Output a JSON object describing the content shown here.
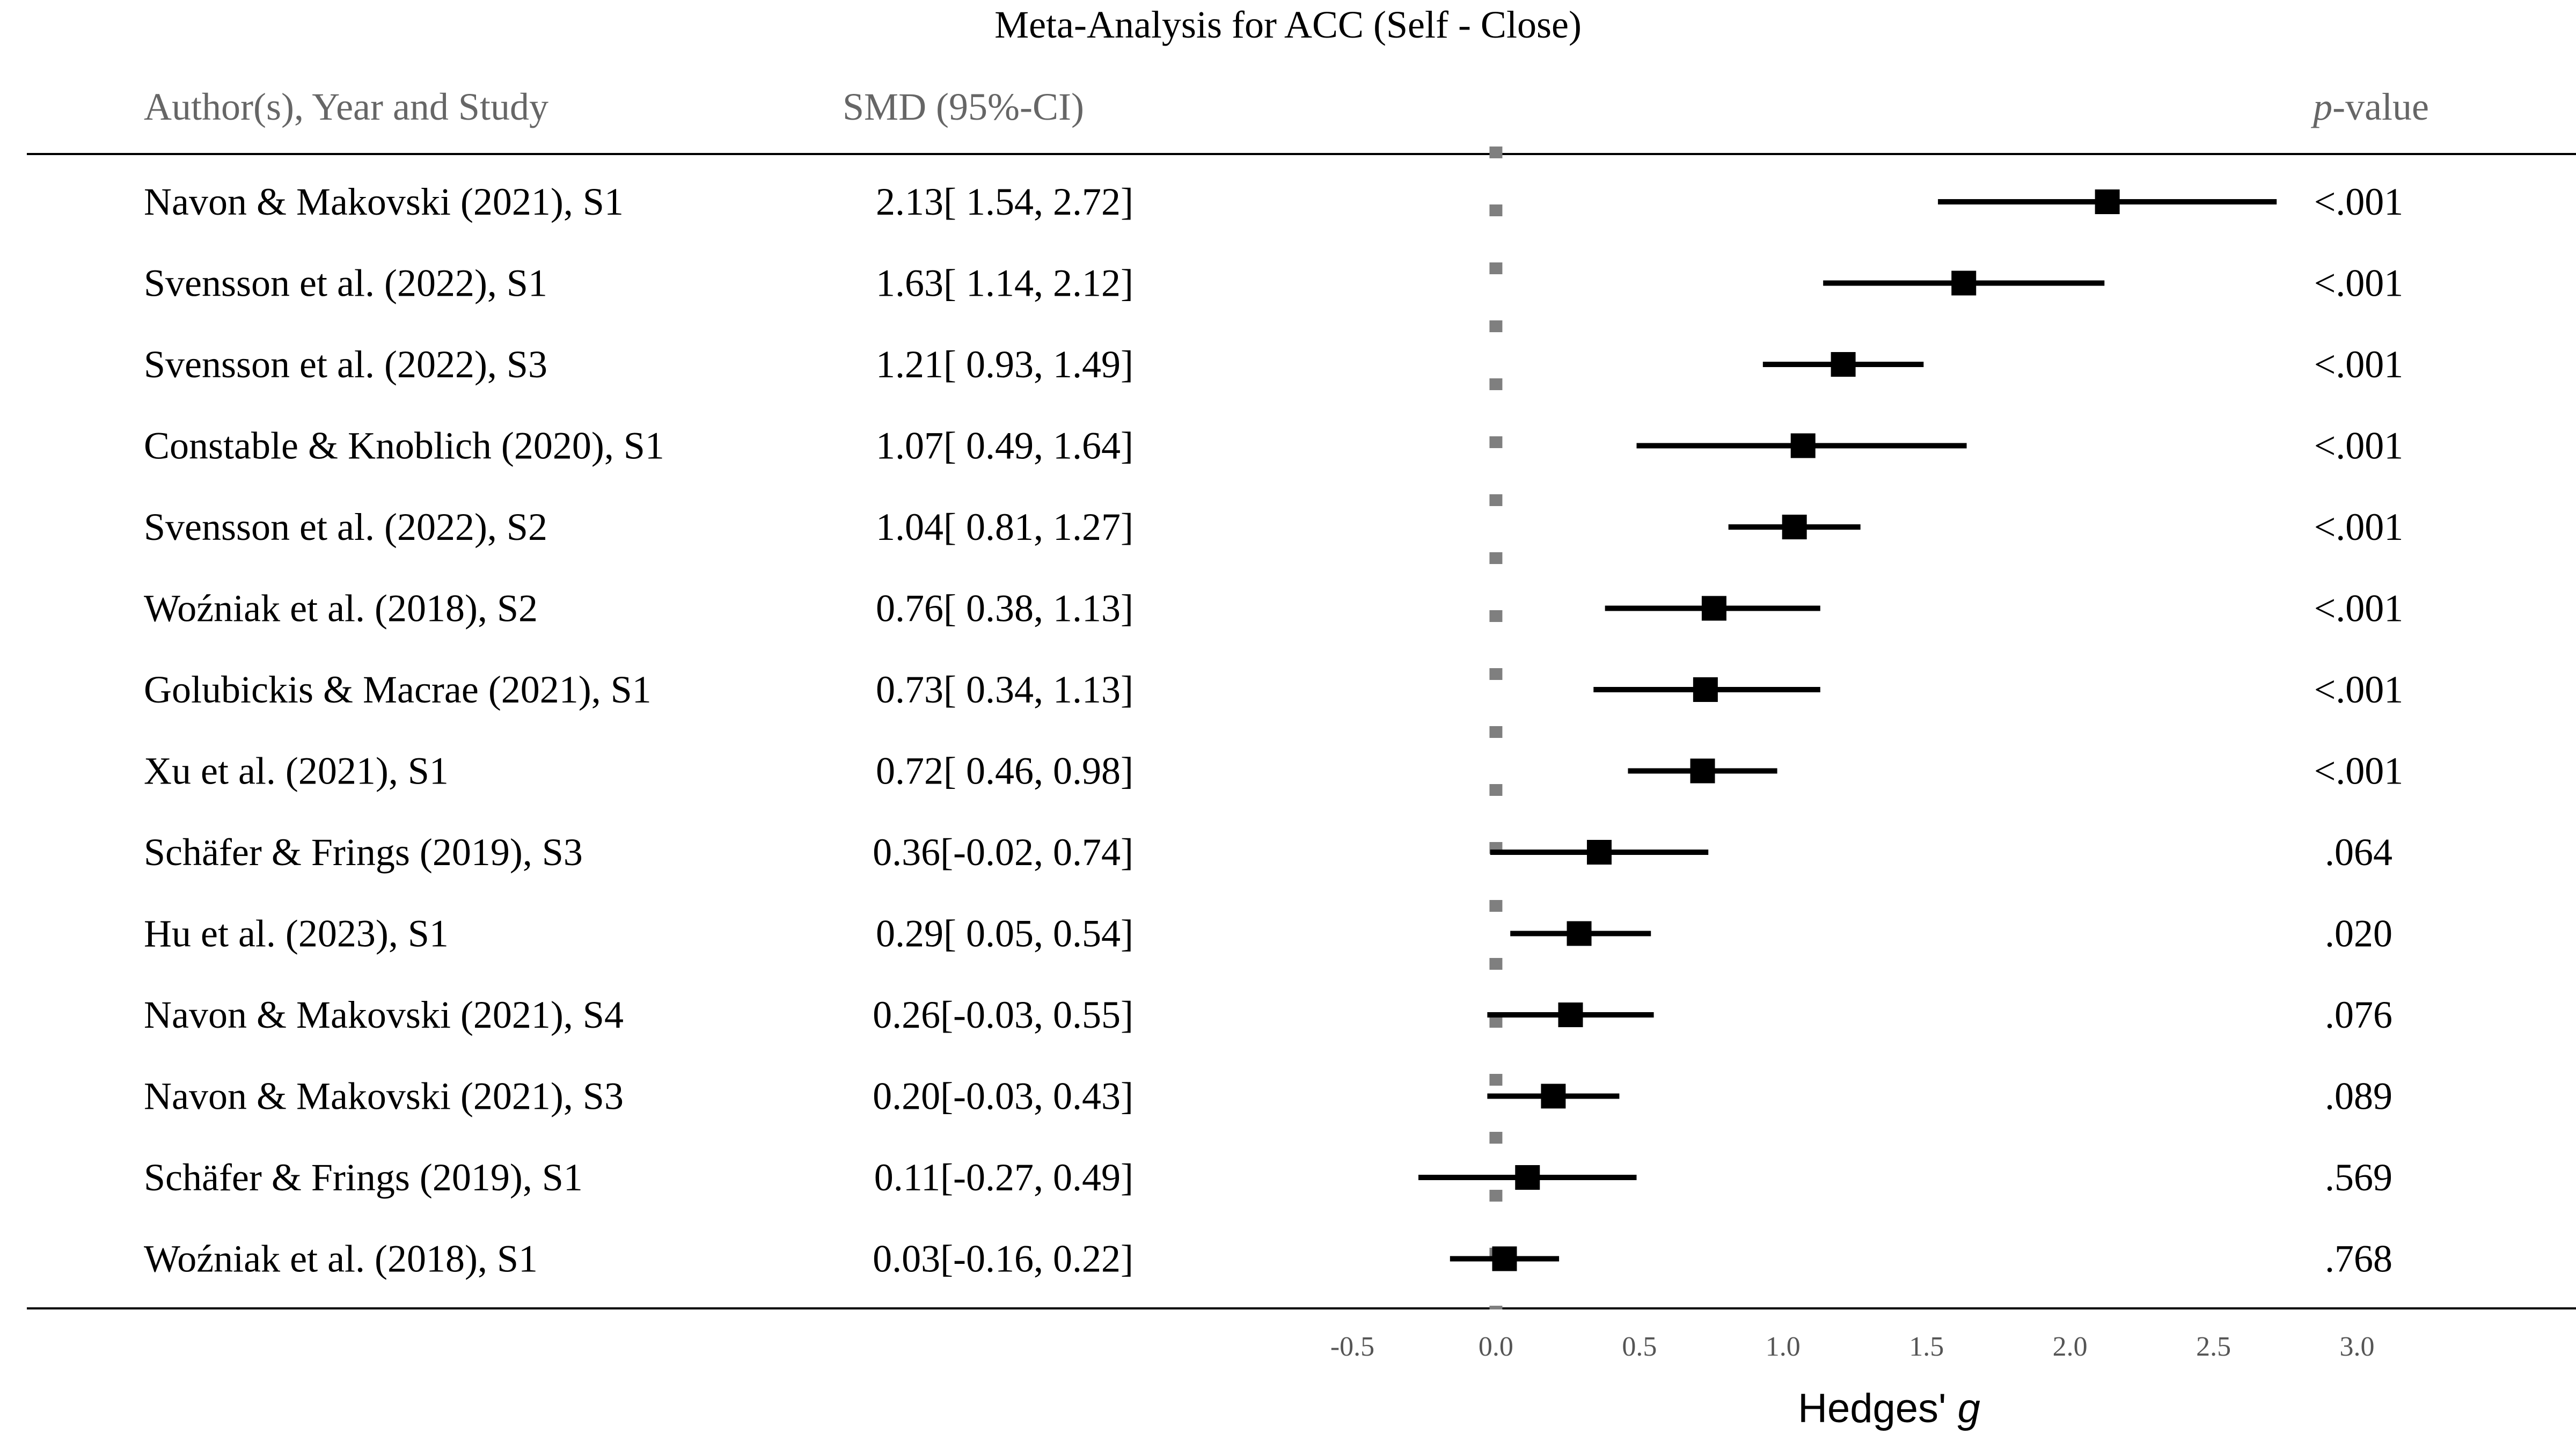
{
  "chart_data": {
    "type": "forest",
    "title": "Meta-Analysis for ACC (Self - Close)",
    "columns": {
      "study": "Author(s), Year and Study",
      "smd": "SMD (95%-CI)",
      "p_prefix": "p",
      "p_suffix": "-value"
    },
    "xlabel_text": "Hedges' ",
    "xlabel_italic": "g",
    "xlim": [
      -0.5,
      3.0
    ],
    "x_ticks": [
      -0.5,
      0.0,
      0.5,
      1.0,
      1.5,
      2.0,
      2.5,
      3.0
    ],
    "x_tick_labels": [
      "-0.5",
      "0.0",
      "0.5",
      "1.0",
      "1.5",
      "2.0",
      "2.5",
      "3.0"
    ],
    "reference_line": 0,
    "studies": [
      {
        "label": "Navon & Makovski (2021), S1",
        "smd_text": "2.13[ 1.54, 2.72]",
        "estimate": 2.13,
        "ci_low": 1.54,
        "ci_high": 2.72,
        "p": "<.001"
      },
      {
        "label": "Svensson et al. (2022), S1",
        "smd_text": "1.63[ 1.14, 2.12]",
        "estimate": 1.63,
        "ci_low": 1.14,
        "ci_high": 2.12,
        "p": "<.001"
      },
      {
        "label": "Svensson et al. (2022), S3",
        "smd_text": "1.21[ 0.93, 1.49]",
        "estimate": 1.21,
        "ci_low": 0.93,
        "ci_high": 1.49,
        "p": "<.001"
      },
      {
        "label": "Constable & Knoblich (2020), S1",
        "smd_text": "1.07[ 0.49, 1.64]",
        "estimate": 1.07,
        "ci_low": 0.49,
        "ci_high": 1.64,
        "p": "<.001"
      },
      {
        "label": "Svensson et al. (2022), S2",
        "smd_text": "1.04[ 0.81, 1.27]",
        "estimate": 1.04,
        "ci_low": 0.81,
        "ci_high": 1.27,
        "p": "<.001"
      },
      {
        "label": "Woźniak et al. (2018), S2",
        "smd_text": "0.76[ 0.38, 1.13]",
        "estimate": 0.76,
        "ci_low": 0.38,
        "ci_high": 1.13,
        "p": "<.001"
      },
      {
        "label": "Golubickis & Macrae (2021), S1",
        "smd_text": "0.73[ 0.34, 1.13]",
        "estimate": 0.73,
        "ci_low": 0.34,
        "ci_high": 1.13,
        "p": "<.001"
      },
      {
        "label": "Xu et al. (2021), S1",
        "smd_text": "0.72[ 0.46, 0.98]",
        "estimate": 0.72,
        "ci_low": 0.46,
        "ci_high": 0.98,
        "p": "<.001"
      },
      {
        "label": "Schäfer & Frings (2019), S3",
        "smd_text": "0.36[-0.02, 0.74]",
        "estimate": 0.36,
        "ci_low": -0.02,
        "ci_high": 0.74,
        "p": ".064"
      },
      {
        "label": "Hu et al. (2023), S1",
        "smd_text": "0.29[ 0.05, 0.54]",
        "estimate": 0.29,
        "ci_low": 0.05,
        "ci_high": 0.54,
        "p": ".020"
      },
      {
        "label": "Navon & Makovski (2021), S4",
        "smd_text": "0.26[-0.03, 0.55]",
        "estimate": 0.26,
        "ci_low": -0.03,
        "ci_high": 0.55,
        "p": ".076"
      },
      {
        "label": "Navon & Makovski (2021), S3",
        "smd_text": "0.20[-0.03, 0.43]",
        "estimate": 0.2,
        "ci_low": -0.03,
        "ci_high": 0.43,
        "p": ".089"
      },
      {
        "label": "Schäfer & Frings (2019), S1",
        "smd_text": "0.11[-0.27, 0.49]",
        "estimate": 0.11,
        "ci_low": -0.27,
        "ci_high": 0.49,
        "p": ".569"
      },
      {
        "label": "Woźniak et al. (2018), S1",
        "smd_text": "0.03[-0.16, 0.22]",
        "estimate": 0.03,
        "ci_low": -0.16,
        "ci_high": 0.22,
        "p": ".768"
      }
    ],
    "colors": {
      "marker": "#000000",
      "ci_line": "#000000",
      "reference_line": "#7f7f7f",
      "header_text": "#666666",
      "body_text": "#000000",
      "tick_text": "#555555",
      "rule": "#000000"
    }
  }
}
